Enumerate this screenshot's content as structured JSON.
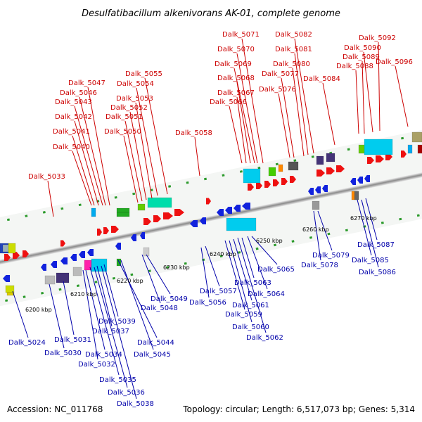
{
  "title": "Desulfatibacillum alkenivorans AK-01, complete genome",
  "footer": {
    "accession": "Accession: NC_011768",
    "topology": "Topology: circular; Length: 6,517,073 bp; Genes: 5,314"
  },
  "colors": {
    "forward_label": "#cc0000",
    "reverse_label": "#0000aa",
    "forward_gene": "#ee1111",
    "reverse_gene": "#1122dd",
    "tick": "#2a9a2a",
    "axis_band": "#c8c8c8"
  },
  "scale_labels": [
    "6200 kbp",
    "6210 kbp",
    "6220 kbp",
    "6230 kbp",
    "6240 kbp",
    "6250 kbp",
    "6260 kbp",
    "6270 kbp"
  ],
  "forward_genes": [
    "Dalk_5033",
    "Dalk_5040",
    "Dalk_5041",
    "Dalk_5042",
    "Dalk_5043",
    "Dalk_5046",
    "Dalk_5047",
    "Dalk_5050",
    "Dalk_5051",
    "Dalk_5052",
    "Dalk_5053",
    "Dalk_5054",
    "Dalk_5055",
    "Dalk_5058",
    "Dalk_5066",
    "Dalk_5067",
    "Dalk_5068",
    "Dalk_5069",
    "Dalk_5070",
    "Dalk_5071",
    "Dalk_5076",
    "Dalk_5077",
    "Dalk_5080",
    "Dalk_5081",
    "Dalk_5082",
    "Dalk_5084",
    "Dalk_5088",
    "Dalk_5089",
    "Dalk_5090",
    "Dalk_5092",
    "Dalk_5096"
  ],
  "reverse_genes": [
    "Dalk_5024",
    "Dalk_5030",
    "Dalk_5031",
    "Dalk_5032",
    "Dalk_5034",
    "Dalk_5035",
    "Dalk_5036",
    "Dalk_5037",
    "Dalk_5038",
    "Dalk_5039",
    "Dalk_5044",
    "Dalk_5045",
    "Dalk_5048",
    "Dalk_5049",
    "Dalk_5056",
    "Dalk_5057",
    "Dalk_5059",
    "Dalk_5060",
    "Dalk_5061",
    "Dalk_5062",
    "Dalk_5063",
    "Dalk_5064",
    "Dalk_5065",
    "Dalk_5078",
    "Dalk_5079",
    "Dalk_5085",
    "Dalk_5086",
    "Dalk_5087"
  ]
}
